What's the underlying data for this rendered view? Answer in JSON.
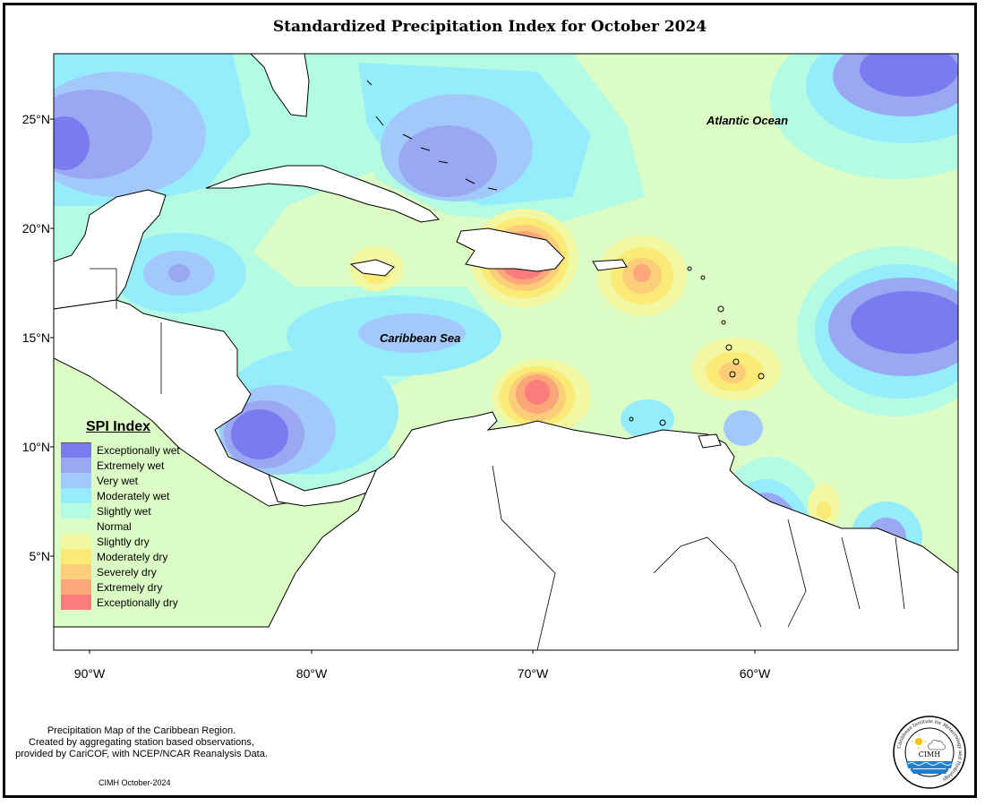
{
  "title": "Standardized Precipitation Index for October 2024",
  "lat_labels": [
    "25°N",
    "20°N",
    "15°N",
    "10°N",
    "5°N"
  ],
  "lon_labels": [
    "90°W",
    "80°W",
    "70°W",
    "60°W"
  ],
  "ocean_labels": {
    "atlantic": "Atlantic Ocean",
    "caribbean": "Caribbean Sea"
  },
  "legend": {
    "title": "SPI Index",
    "items": [
      {
        "label": "Exceptionally wet",
        "color": "#7b7bf0"
      },
      {
        "label": "Extremely wet",
        "color": "#9aa8f4"
      },
      {
        "label": "Very wet",
        "color": "#a3c9fb"
      },
      {
        "label": "Moderately wet",
        "color": "#95ecfa"
      },
      {
        "label": "Slightly wet",
        "color": "#b4fbe4"
      },
      {
        "label": "Normal",
        "color": "#dcfcc6"
      },
      {
        "label": "Slightly dry",
        "color": "#f2f7a2"
      },
      {
        "label": "Moderately dry",
        "color": "#fbea76"
      },
      {
        "label": "Severely dry",
        "color": "#fdce7a"
      },
      {
        "label": "Extremely dry",
        "color": "#fca779"
      },
      {
        "label": "Exceptionally dry",
        "color": "#fb7c7c"
      }
    ]
  },
  "footnote": {
    "line1": "Precipitation Map of the Caribbean Region.",
    "line2": "Created by aggregating station based observations,",
    "line3": "provided by CariCOF, with NCEP/NCAR Reanalysis Data."
  },
  "date_stamp": "CIMH October-2024",
  "logo": {
    "name": "CIMH",
    "ring_text": "Caribbean Institute for Meteorology and Hydrology",
    "colors": {
      "ring": "#000000",
      "water": "#1e7fd0",
      "sun": "#f2c200"
    }
  }
}
